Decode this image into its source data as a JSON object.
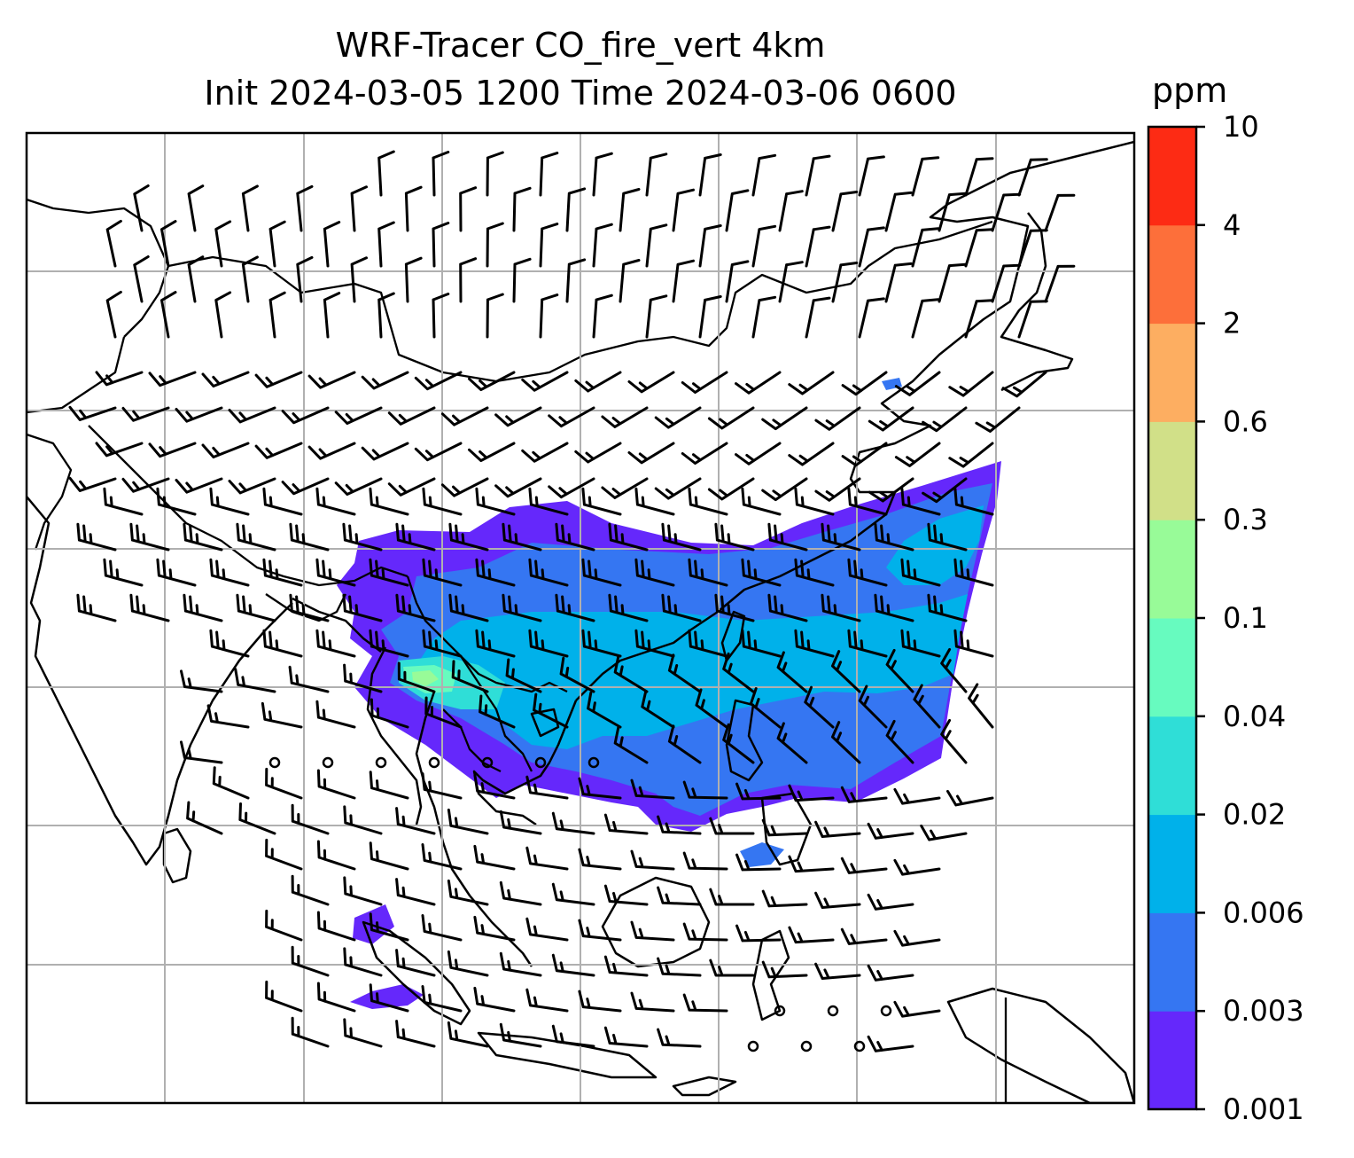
{
  "title": {
    "line1": "WRF-Tracer CO_fire_vert 4km",
    "line2": "Init 2024-03-05 1200 Time 2024-03-06 0600"
  },
  "colorbar": {
    "unit": "ppm",
    "levels": [
      "0.001",
      "0.003",
      "0.006",
      "0.02",
      "0.04",
      "0.1",
      "0.3",
      "0.6",
      "2",
      "4",
      "10"
    ],
    "colors": [
      "#6528fb",
      "#3576f2",
      "#00b1ea",
      "#2fded7",
      "#67fbbf",
      "#98fb98",
      "#d1e088",
      "#fdae61",
      "#fd6f3a",
      "#fd2b14"
    ]
  },
  "map": {
    "features": [
      "coastlines",
      "country-borders",
      "gridlines",
      "wind-barbs",
      "tracer-plume"
    ],
    "gridline_color": "#b0b0b0"
  }
}
